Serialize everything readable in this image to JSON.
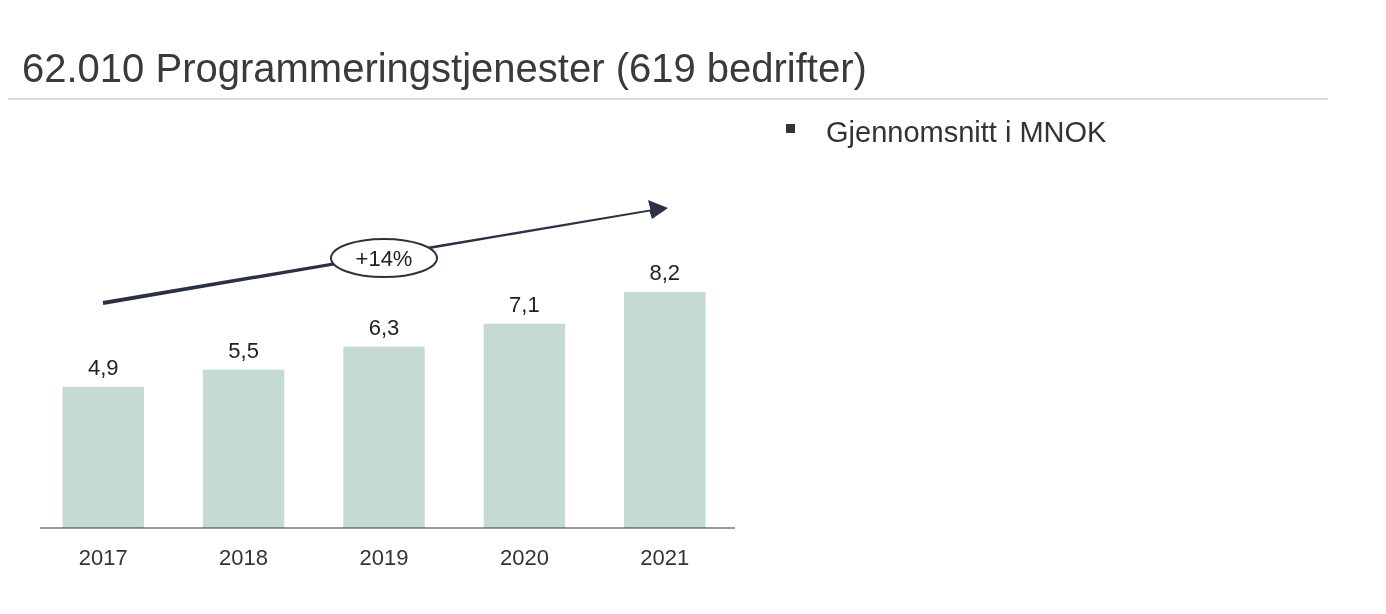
{
  "chart_data": {
    "type": "bar",
    "title": "62.010 Programmeringstjenester (619 bedrifter)",
    "categories": [
      "2017",
      "2018",
      "2019",
      "2020",
      "2021"
    ],
    "values": [
      4.9,
      5.5,
      6.3,
      7.1,
      8.2
    ],
    "value_labels": [
      "4,9",
      "5,5",
      "6,3",
      "7,1",
      "8,2"
    ],
    "color": "#c5dad2",
    "annotations": [
      "+14%",
      "Gjennomsnitt i MNOK"
    ]
  }
}
